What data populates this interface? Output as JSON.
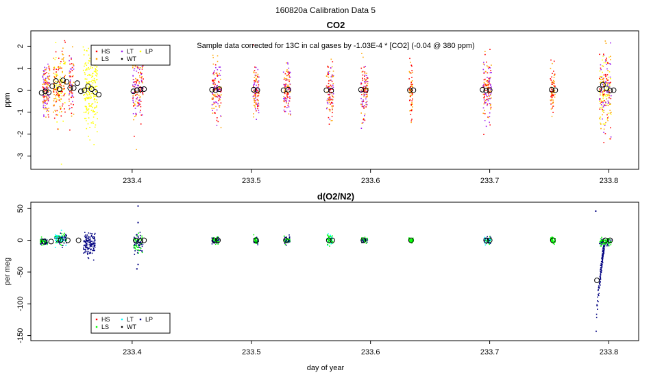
{
  "figure_title": "160820a   Calibration Data 5",
  "chart_data": [
    {
      "type": "scatter",
      "title": "CO2",
      "annotation": "Sample data corrected for 13C in cal gases by -1.03E-4 * [CO2] (-0.04 @ 380 ppm)",
      "xlabel": "",
      "ylabel": "ppm",
      "xlim": [
        233.315,
        233.825
      ],
      "ylim": [
        -3.6,
        2.7
      ],
      "x_ticks": [
        233.4,
        233.5,
        233.6,
        233.7,
        233.8
      ],
      "x_tick_labels": [
        "233.4",
        "233.5",
        "233.6",
        "233.7",
        "233.8"
      ],
      "y_ticks": [
        -3,
        -2,
        -1,
        0,
        1,
        2
      ],
      "y_tick_labels": [
        "-3",
        "-2",
        "-1",
        "0",
        "1",
        "2"
      ],
      "legend": {
        "placement": "top-left",
        "entries": [
          {
            "name": "HS",
            "color": "#ff0000"
          },
          {
            "name": "LS",
            "color": "#ffa500"
          },
          {
            "name": "LT",
            "color": "#a020f0"
          },
          {
            "name": "WT",
            "color": "#000000"
          },
          {
            "name": "LP",
            "color": "#ffff00"
          }
        ]
      },
      "scatter_clusters": [
        {
          "x_center": 233.328,
          "x_width": 0.006,
          "y_mean": 0.0,
          "y_sd": 0.7,
          "series": [
            "HS",
            "LS",
            "LT"
          ],
          "n": 140
        },
        {
          "x_center": 233.339,
          "x_width": 0.01,
          "y_mean": 0.2,
          "y_sd": 0.85,
          "series": [
            "LP",
            "HS",
            "LS"
          ],
          "n": 180
        },
        {
          "x_center": 233.349,
          "x_width": 0.004,
          "y_mean": 0.2,
          "y_sd": 0.7,
          "series": [
            "HS",
            "LS",
            "LT"
          ],
          "n": 70
        },
        {
          "x_center": 233.365,
          "x_width": 0.012,
          "y_mean": 0.0,
          "y_sd": 0.9,
          "series": [
            "LP"
          ],
          "n": 200
        },
        {
          "x_center": 233.405,
          "x_width": 0.009,
          "y_mean": 0.0,
          "y_sd": 0.7,
          "series": [
            "HS",
            "LS",
            "LT"
          ],
          "n": 150
        },
        {
          "x_center": 233.471,
          "x_width": 0.008,
          "y_mean": 0.0,
          "y_sd": 0.65,
          "series": [
            "HS",
            "LS",
            "LT"
          ],
          "n": 130
        },
        {
          "x_center": 233.504,
          "x_width": 0.005,
          "y_mean": 0.0,
          "y_sd": 0.6,
          "series": [
            "HS",
            "LS",
            "LT"
          ],
          "n": 100
        },
        {
          "x_center": 233.53,
          "x_width": 0.006,
          "y_mean": 0.0,
          "y_sd": 0.6,
          "series": [
            "HS",
            "LS",
            "LT"
          ],
          "n": 110
        },
        {
          "x_center": 233.566,
          "x_width": 0.006,
          "y_mean": 0.0,
          "y_sd": 0.65,
          "series": [
            "HS",
            "LS",
            "LT"
          ],
          "n": 110
        },
        {
          "x_center": 233.595,
          "x_width": 0.006,
          "y_mean": 0.0,
          "y_sd": 0.65,
          "series": [
            "HS",
            "LS",
            "LT"
          ],
          "n": 110
        },
        {
          "x_center": 233.634,
          "x_width": 0.003,
          "y_mean": 0.0,
          "y_sd": 0.6,
          "series": [
            "LS",
            "HS"
          ],
          "n": 70
        },
        {
          "x_center": 233.698,
          "x_width": 0.007,
          "y_mean": 0.0,
          "y_sd": 0.7,
          "series": [
            "HS",
            "LS",
            "LT"
          ],
          "n": 130
        },
        {
          "x_center": 233.753,
          "x_width": 0.004,
          "y_mean": 0.0,
          "y_sd": 0.55,
          "series": [
            "HS",
            "LS"
          ],
          "n": 70
        },
        {
          "x_center": 233.797,
          "x_width": 0.01,
          "y_mean": 0.0,
          "y_sd": 0.9,
          "series": [
            "LP",
            "HS",
            "LS",
            "LT"
          ],
          "n": 200
        }
      ],
      "mean_points": [
        {
          "x": 233.324,
          "y": -0.12
        },
        {
          "x": 233.327,
          "y": -0.05
        },
        {
          "x": 233.33,
          "y": -0.1
        },
        {
          "x": 233.333,
          "y": 0.18
        },
        {
          "x": 233.336,
          "y": 0.42
        },
        {
          "x": 233.339,
          "y": 0.05
        },
        {
          "x": 233.342,
          "y": 0.45
        },
        {
          "x": 233.345,
          "y": 0.38
        },
        {
          "x": 233.348,
          "y": 0.1
        },
        {
          "x": 233.351,
          "y": 0.1
        },
        {
          "x": 233.354,
          "y": 0.32
        },
        {
          "x": 233.357,
          "y": -0.05
        },
        {
          "x": 233.36,
          "y": 0.0
        },
        {
          "x": 233.363,
          "y": 0.18
        },
        {
          "x": 233.366,
          "y": 0.05
        },
        {
          "x": 233.369,
          "y": -0.08
        },
        {
          "x": 233.372,
          "y": -0.2
        },
        {
          "x": 233.401,
          "y": -0.05
        },
        {
          "x": 233.404,
          "y": 0.0
        },
        {
          "x": 233.407,
          "y": 0.03
        },
        {
          "x": 233.41,
          "y": 0.05
        },
        {
          "x": 233.467,
          "y": 0.02
        },
        {
          "x": 233.47,
          "y": 0.0
        },
        {
          "x": 233.473,
          "y": 0.05
        },
        {
          "x": 233.502,
          "y": 0.02
        },
        {
          "x": 233.505,
          "y": 0.0
        },
        {
          "x": 233.527,
          "y": 0.0
        },
        {
          "x": 233.531,
          "y": 0.02
        },
        {
          "x": 233.563,
          "y": 0.0
        },
        {
          "x": 233.567,
          "y": -0.02
        },
        {
          "x": 233.592,
          "y": 0.02
        },
        {
          "x": 233.596,
          "y": 0.0
        },
        {
          "x": 233.633,
          "y": 0.0
        },
        {
          "x": 233.636,
          "y": 0.0
        },
        {
          "x": 233.694,
          "y": 0.02
        },
        {
          "x": 233.697,
          "y": -0.02
        },
        {
          "x": 233.7,
          "y": 0.0
        },
        {
          "x": 233.752,
          "y": 0.02
        },
        {
          "x": 233.755,
          "y": 0.0
        },
        {
          "x": 233.792,
          "y": 0.05
        },
        {
          "x": 233.795,
          "y": 0.25
        },
        {
          "x": 233.798,
          "y": 0.08
        },
        {
          "x": 233.801,
          "y": -0.02
        },
        {
          "x": 233.804,
          "y": 0.0
        }
      ]
    },
    {
      "type": "scatter",
      "title": "d(O2/N2)",
      "xlabel": "day of year",
      "ylabel": "per meg",
      "xlim": [
        233.315,
        233.825
      ],
      "ylim": [
        -158,
        60
      ],
      "x_ticks": [
        233.4,
        233.5,
        233.6,
        233.7,
        233.8
      ],
      "x_tick_labels": [
        "233.4",
        "233.5",
        "233.6",
        "233.7",
        "233.8"
      ],
      "y_ticks": [
        -150,
        -100,
        -50,
        0,
        50
      ],
      "y_tick_labels": [
        "-150",
        "-100",
        "-50",
        "0",
        "50"
      ],
      "legend": {
        "placement": "bottom-left",
        "entries": [
          {
            "name": "HS",
            "color": "#ff0000"
          },
          {
            "name": "LS",
            "color": "#00ff00"
          },
          {
            "name": "LT",
            "color": "#00ffff"
          },
          {
            "name": "WT",
            "color": "#000000"
          },
          {
            "name": "LP",
            "color": "#000080"
          }
        ]
      },
      "scatter_clusters": [
        {
          "x_center": 233.326,
          "x_width": 0.006,
          "y_mean": -2,
          "y_sd": 2.5,
          "series": [
            "LP",
            "LS"
          ],
          "n": 70
        },
        {
          "x_center": 233.34,
          "x_width": 0.01,
          "y_mean": 2,
          "y_sd": 5,
          "series": [
            "LP",
            "LT",
            "LS"
          ],
          "n": 120
        },
        {
          "x_center": 233.364,
          "x_width": 0.01,
          "y_mean": -5,
          "y_sd": 9,
          "series": [
            "LP"
          ],
          "n": 150
        },
        {
          "x_center": 233.405,
          "x_width": 0.008,
          "y_mean": -4,
          "y_sd": 7,
          "series": [
            "LP",
            "LS"
          ],
          "n": 90
        },
        {
          "x_center": 233.47,
          "x_width": 0.006,
          "y_mean": 0,
          "y_sd": 3,
          "series": [
            "LS",
            "LP"
          ],
          "n": 60
        },
        {
          "x_center": 233.504,
          "x_width": 0.004,
          "y_mean": 0,
          "y_sd": 3,
          "series": [
            "LS",
            "LP"
          ],
          "n": 50
        },
        {
          "x_center": 233.53,
          "x_width": 0.005,
          "y_mean": 0,
          "y_sd": 3,
          "series": [
            "LS",
            "LP"
          ],
          "n": 50
        },
        {
          "x_center": 233.566,
          "x_width": 0.005,
          "y_mean": 0,
          "y_sd": 5,
          "series": [
            "LT",
            "LS"
          ],
          "n": 60
        },
        {
          "x_center": 233.595,
          "x_width": 0.005,
          "y_mean": 0,
          "y_sd": 2,
          "series": [
            "LS",
            "LP"
          ],
          "n": 50
        },
        {
          "x_center": 233.634,
          "x_width": 0.004,
          "y_mean": 0,
          "y_sd": 2,
          "series": [
            "LS"
          ],
          "n": 40
        },
        {
          "x_center": 233.698,
          "x_width": 0.006,
          "y_mean": 0,
          "y_sd": 3,
          "series": [
            "LS",
            "LT",
            "LP"
          ],
          "n": 60
        },
        {
          "x_center": 233.753,
          "x_width": 0.004,
          "y_mean": 0,
          "y_sd": 2.5,
          "series": [
            "LS"
          ],
          "n": 40
        },
        {
          "x_center": 233.797,
          "x_width": 0.01,
          "y_mean": -3,
          "y_sd": 3,
          "series": [
            "LP",
            "LS"
          ],
          "n": 90
        }
      ],
      "outliers": [
        {
          "x": 233.405,
          "y": 54,
          "series": "LP"
        },
        {
          "x": 233.405,
          "y": 28,
          "series": "LP"
        },
        {
          "x": 233.404,
          "y": -45,
          "series": "LP"
        },
        {
          "x": 233.405,
          "y": -38,
          "series": "LP"
        },
        {
          "x": 233.789,
          "y": 46,
          "series": "LP"
        }
      ],
      "drift_segment": {
        "series": "LP",
        "x_start": 233.789,
        "x_end": 233.796,
        "y_start": -148,
        "y_end": -8
      },
      "mean_points": [
        {
          "x": 233.326,
          "y": -2
        },
        {
          "x": 233.332,
          "y": -2
        },
        {
          "x": 233.34,
          "y": 0
        },
        {
          "x": 233.346,
          "y": 0
        },
        {
          "x": 233.355,
          "y": 0
        },
        {
          "x": 233.403,
          "y": 0
        },
        {
          "x": 233.407,
          "y": -1
        },
        {
          "x": 233.41,
          "y": 0
        },
        {
          "x": 233.469,
          "y": 0
        },
        {
          "x": 233.472,
          "y": 0
        },
        {
          "x": 233.504,
          "y": 0
        },
        {
          "x": 233.529,
          "y": 0
        },
        {
          "x": 233.565,
          "y": 0
        },
        {
          "x": 233.568,
          "y": 0
        },
        {
          "x": 233.594,
          "y": 0
        },
        {
          "x": 233.634,
          "y": 0
        },
        {
          "x": 233.697,
          "y": 0
        },
        {
          "x": 233.7,
          "y": 0
        },
        {
          "x": 233.753,
          "y": 0
        },
        {
          "x": 233.79,
          "y": -63
        },
        {
          "x": 233.797,
          "y": 0
        },
        {
          "x": 233.801,
          "y": 0
        }
      ]
    }
  ]
}
